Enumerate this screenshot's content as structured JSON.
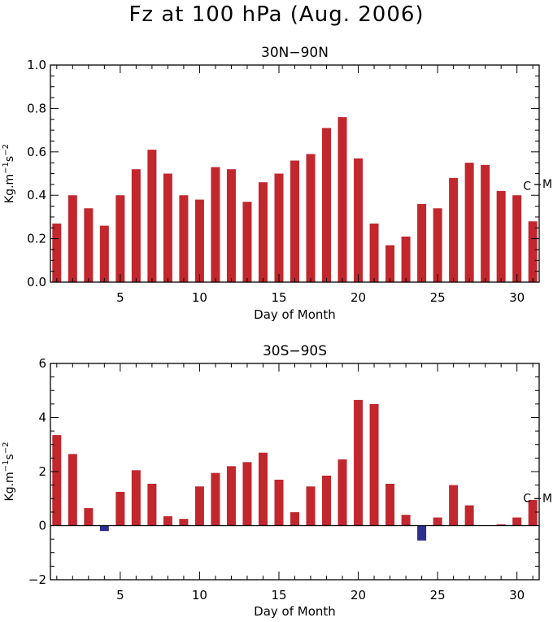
{
  "figure_title": "Fz at 100 hPa (Aug. 2006)",
  "chart_data": [
    {
      "type": "bar",
      "title": "30N−90N",
      "xlabel": "Day of Month",
      "ylabel_main": "Kg.m",
      "ylabel_sup1": "−1",
      "ylabel_mid": "s",
      "ylabel_sup2": "−2",
      "xlim": [
        0.6,
        31.4
      ],
      "ylim": [
        0,
        1.0
      ],
      "xticks": [
        5,
        10,
        15,
        20,
        25,
        30
      ],
      "xtick_labels": [
        "5",
        "10",
        "15",
        "20",
        "25",
        "30"
      ],
      "yticks": [
        0.0,
        0.2,
        0.4,
        0.6,
        0.8,
        1.0
      ],
      "ytick_labels": [
        "0.0",
        "0.2",
        "0.4",
        "0.6",
        "0.8",
        "1.0"
      ],
      "days": [
        1,
        2,
        3,
        4,
        5,
        6,
        7,
        8,
        9,
        10,
        11,
        12,
        13,
        14,
        15,
        16,
        17,
        18,
        19,
        20,
        21,
        22,
        23,
        24,
        25,
        26,
        27,
        28,
        29,
        30,
        31
      ],
      "values": [
        0.27,
        0.4,
        0.34,
        0.26,
        0.4,
        0.52,
        0.61,
        0.5,
        0.4,
        0.38,
        0.53,
        0.52,
        0.37,
        0.46,
        0.5,
        0.56,
        0.59,
        0.71,
        0.76,
        0.57,
        0.27,
        0.17,
        0.21,
        0.36,
        0.34,
        0.48,
        0.55,
        0.54,
        0.42,
        0.4,
        0.28
      ],
      "positive_color": "#c1272d",
      "negative_color": "#2e2e8f",
      "markers": [
        {
          "label": "C",
          "value": 0.44
        },
        {
          "label": "M",
          "value": 0.45
        }
      ]
    },
    {
      "type": "bar",
      "title": "30S−90S",
      "xlabel": "Day of Month",
      "ylabel_main": "Kg.m",
      "ylabel_sup1": "−1",
      "ylabel_mid": "s",
      "ylabel_sup2": "−2",
      "xlim": [
        0.6,
        31.4
      ],
      "ylim": [
        -2.0,
        6.0
      ],
      "xticks": [
        5,
        10,
        15,
        20,
        25,
        30
      ],
      "xtick_labels": [
        "5",
        "10",
        "15",
        "20",
        "25",
        "30"
      ],
      "yticks": [
        -2,
        0,
        2,
        4,
        6
      ],
      "ytick_labels": [
        "−2",
        "0",
        "2",
        "4",
        "6"
      ],
      "days": [
        1,
        2,
        3,
        4,
        5,
        6,
        7,
        8,
        9,
        10,
        11,
        12,
        13,
        14,
        15,
        16,
        17,
        18,
        19,
        20,
        21,
        22,
        23,
        24,
        25,
        26,
        27,
        28,
        29,
        30,
        31
      ],
      "values": [
        3.35,
        2.65,
        0.65,
        -0.2,
        1.25,
        2.05,
        1.55,
        0.35,
        0.25,
        1.45,
        1.95,
        2.2,
        2.35,
        2.7,
        1.7,
        0.5,
        1.45,
        1.85,
        2.45,
        4.65,
        4.5,
        1.55,
        0.4,
        -0.55,
        0.3,
        1.5,
        0.75,
        0.0,
        0.05,
        0.3,
        0.95
      ],
      "zero_line": true,
      "positive_color": "#c1272d",
      "negative_color": "#2e2e8f",
      "markers": [
        {
          "label": "C",
          "value": 1.0
        },
        {
          "label": "M",
          "value": 1.0
        }
      ]
    }
  ]
}
